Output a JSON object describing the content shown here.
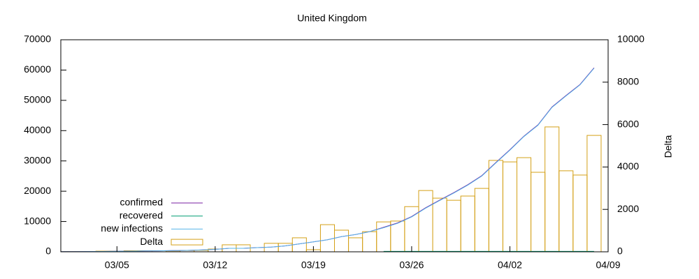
{
  "chart_data": {
    "type": "line",
    "title": "United Kingdom",
    "y2label": "Delta",
    "x": [
      "03/01",
      "03/02",
      "03/03",
      "03/04",
      "03/05",
      "03/06",
      "03/07",
      "03/08",
      "03/09",
      "03/10",
      "03/11",
      "03/12",
      "03/13",
      "03/14",
      "03/15",
      "03/16",
      "03/17",
      "03/18",
      "03/19",
      "03/20",
      "03/21",
      "03/22",
      "03/23",
      "03/24",
      "03/25",
      "03/26",
      "03/27",
      "03/28",
      "03/29",
      "03/30",
      "03/31",
      "04/01",
      "04/02",
      "04/03",
      "04/04",
      "04/05",
      "04/06",
      "04/07",
      "04/08"
    ],
    "xlim": [
      "03/01",
      "04/09"
    ],
    "xticks": [
      "03/05",
      "03/12",
      "03/19",
      "03/26",
      "04/02",
      "04/09"
    ],
    "ylim": [
      0,
      70000
    ],
    "yticks": [
      0,
      10000,
      20000,
      30000,
      40000,
      50000,
      60000,
      70000
    ],
    "y2lim": [
      0,
      10000
    ],
    "y2ticks": [
      0,
      2000,
      4000,
      6000,
      8000,
      10000
    ],
    "legend": "lower left",
    "series": [
      {
        "name": "confirmed",
        "color": "#7a1fa0",
        "values": [
          40,
          51,
          86,
          116,
          164,
          209,
          278,
          321,
          383,
          460,
          590,
          800,
          1140,
          1140,
          1391,
          1543,
          1950,
          2626,
          3269,
          3983,
          5018,
          5683,
          6650,
          8077,
          9529,
          11658,
          14543,
          17089,
          19522,
          22141,
          25150,
          29474,
          33718,
          38168,
          41903,
          47806,
          51608,
          55242,
          60733
        ]
      },
      {
        "name": "recovered",
        "color": "#009e73",
        "values": [
          null,
          null,
          null,
          null,
          null,
          null,
          null,
          null,
          null,
          null,
          null,
          null,
          null,
          null,
          null,
          null,
          null,
          null,
          null,
          null,
          null,
          null,
          null,
          135,
          135,
          135,
          135,
          135,
          135,
          135,
          135,
          135,
          135,
          135,
          135,
          135,
          135,
          135,
          135
        ]
      },
      {
        "name": "new infections",
        "color": "#56b4e9",
        "values": [
          40,
          51,
          86,
          116,
          164,
          209,
          278,
          321,
          383,
          460,
          590,
          800,
          1140,
          1140,
          1391,
          1543,
          1950,
          2626,
          3269,
          3983,
          5018,
          5683,
          6650,
          7942,
          9394,
          11523,
          14408,
          16954,
          19387,
          22006,
          25015,
          29339,
          33583,
          38033,
          41768,
          47671,
          51473,
          55107,
          60598
        ]
      },
      {
        "name": "Delta",
        "type": "bar",
        "axis": "y2",
        "color": "#d4a017",
        "values": [
          10,
          10,
          10,
          30,
          30,
          50,
          50,
          50,
          40,
          60,
          70,
          130,
          330,
          330,
          0,
          400,
          400,
          660,
          100,
          1280,
          1020,
          660,
          950,
          1410,
          1450,
          2130,
          2890,
          2530,
          2430,
          2630,
          2990,
          4310,
          4240,
          4440,
          3750,
          5890,
          3820,
          3620,
          5490
        ]
      }
    ]
  }
}
